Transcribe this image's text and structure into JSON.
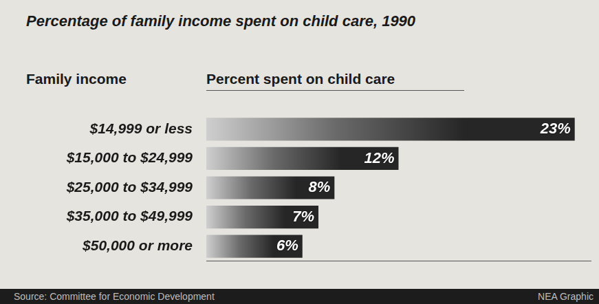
{
  "chart_data": {
    "type": "bar",
    "orientation": "horizontal",
    "title": "Percentage of family income spent on child care, 1990",
    "y_label": "Family income",
    "x_label": "Percent spent on child care",
    "categories": [
      "$14,999 or less",
      "$15,000 to $24,999",
      "$25,000 to $34,999",
      "$35,000 to $49,999",
      "$50,000 or more"
    ],
    "values": [
      23,
      12,
      8,
      7,
      6
    ],
    "value_labels": [
      "23%",
      "12%",
      "8%",
      "7%",
      "6%"
    ],
    "data_labels": true,
    "color": "#262626",
    "xlim": [
      0,
      24
    ],
    "grid": false,
    "tick_labels": "y",
    "source": "Source: Committee for Economic Development",
    "credit": "NEA Graphic"
  }
}
